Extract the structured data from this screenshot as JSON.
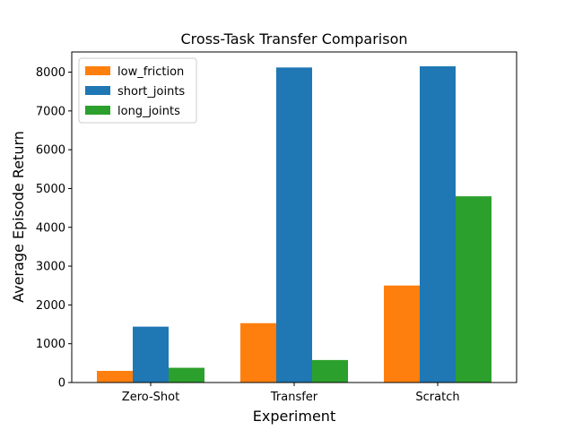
{
  "chart_data": {
    "type": "bar",
    "title": "Cross-Task Transfer Comparison",
    "xlabel": "Experiment",
    "ylabel": "Average Episode Return",
    "categories": [
      "Zero-Shot",
      "Transfer",
      "Scratch"
    ],
    "series": [
      {
        "name": "low_friction",
        "color": "#ff7f0e",
        "values": [
          300,
          1530,
          2500
        ]
      },
      {
        "name": "short_joints",
        "color": "#1f77b4",
        "values": [
          1440,
          8120,
          8150
        ]
      },
      {
        "name": "long_joints",
        "color": "#2ca02c",
        "values": [
          380,
          580,
          4800
        ]
      }
    ],
    "ylim": [
      0,
      8520
    ],
    "yticks": [
      0,
      1000,
      2000,
      3000,
      4000,
      5000,
      6000,
      7000,
      8000
    ],
    "grid": false,
    "legend_position": "upper-left"
  }
}
